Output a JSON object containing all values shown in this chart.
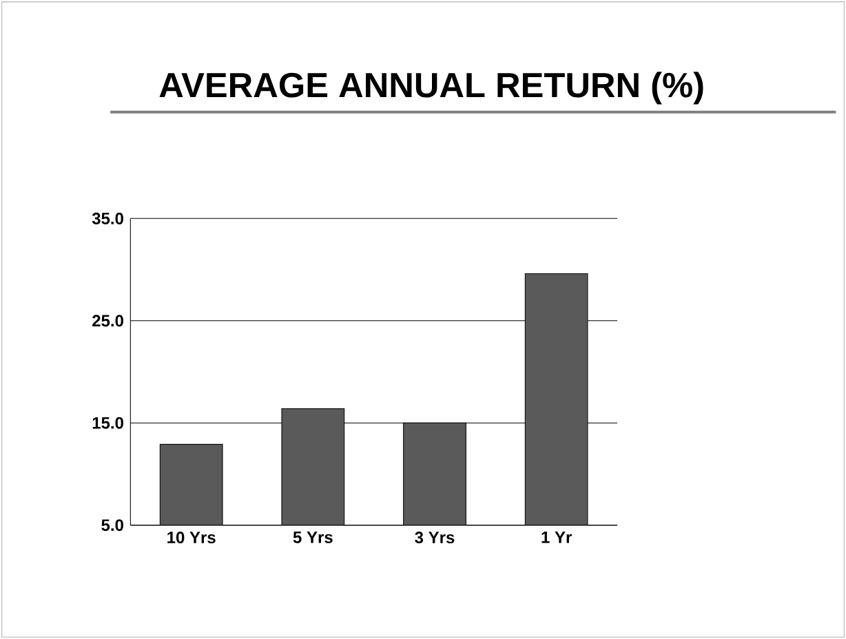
{
  "chart_data": {
    "type": "bar",
    "title": "AVERAGE ANNUAL RETURN (%)",
    "categories": [
      "10 Yrs",
      "5 Yrs",
      "3 Yrs",
      "1 Yr"
    ],
    "values": [
      12.9,
      16.4,
      15.0,
      29.6
    ],
    "color": "#5a5a5a",
    "ylim": [
      5,
      35
    ],
    "yticks": [
      {
        "value": 5,
        "label": "5.0"
      },
      {
        "value": 15,
        "label": "15.0"
      },
      {
        "value": 25,
        "label": "25.0"
      },
      {
        "value": 35,
        "label": "35.0"
      }
    ],
    "grid": "y"
  }
}
